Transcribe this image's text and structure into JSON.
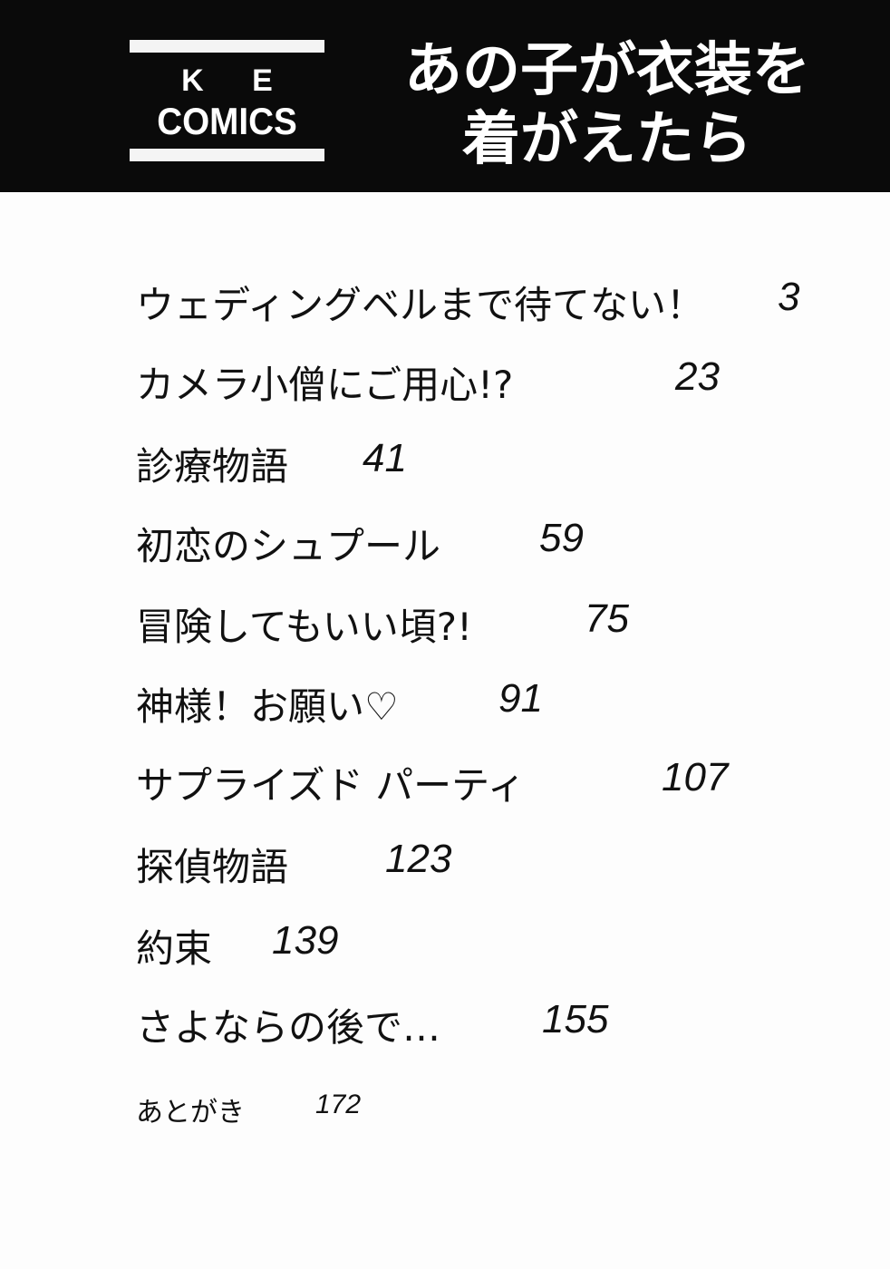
{
  "header": {
    "label_line1": "K E",
    "label_line2": "COMICS",
    "title_line1": "あの子が衣装を",
    "title_line2": "着がえたら"
  },
  "contents": [
    {
      "title": "ウェディングベルまで待てない！",
      "page": "3"
    },
    {
      "title": "カメラ小僧にご用心!?",
      "page": "23"
    },
    {
      "title": "診療物語",
      "page": "41"
    },
    {
      "title": "初恋のシュプール",
      "page": "59"
    },
    {
      "title": "冒険してもいい頃?!",
      "page": "75"
    },
    {
      "title": "神様！お願い♡",
      "page": "91"
    },
    {
      "title": "サプライズド パーティ",
      "page": "107"
    },
    {
      "title": "探偵物語",
      "page": "123"
    },
    {
      "title": "約束",
      "page": "139"
    },
    {
      "title": "さよならの後で…",
      "page": "155"
    },
    {
      "title": "あとがき",
      "page": "172"
    }
  ]
}
